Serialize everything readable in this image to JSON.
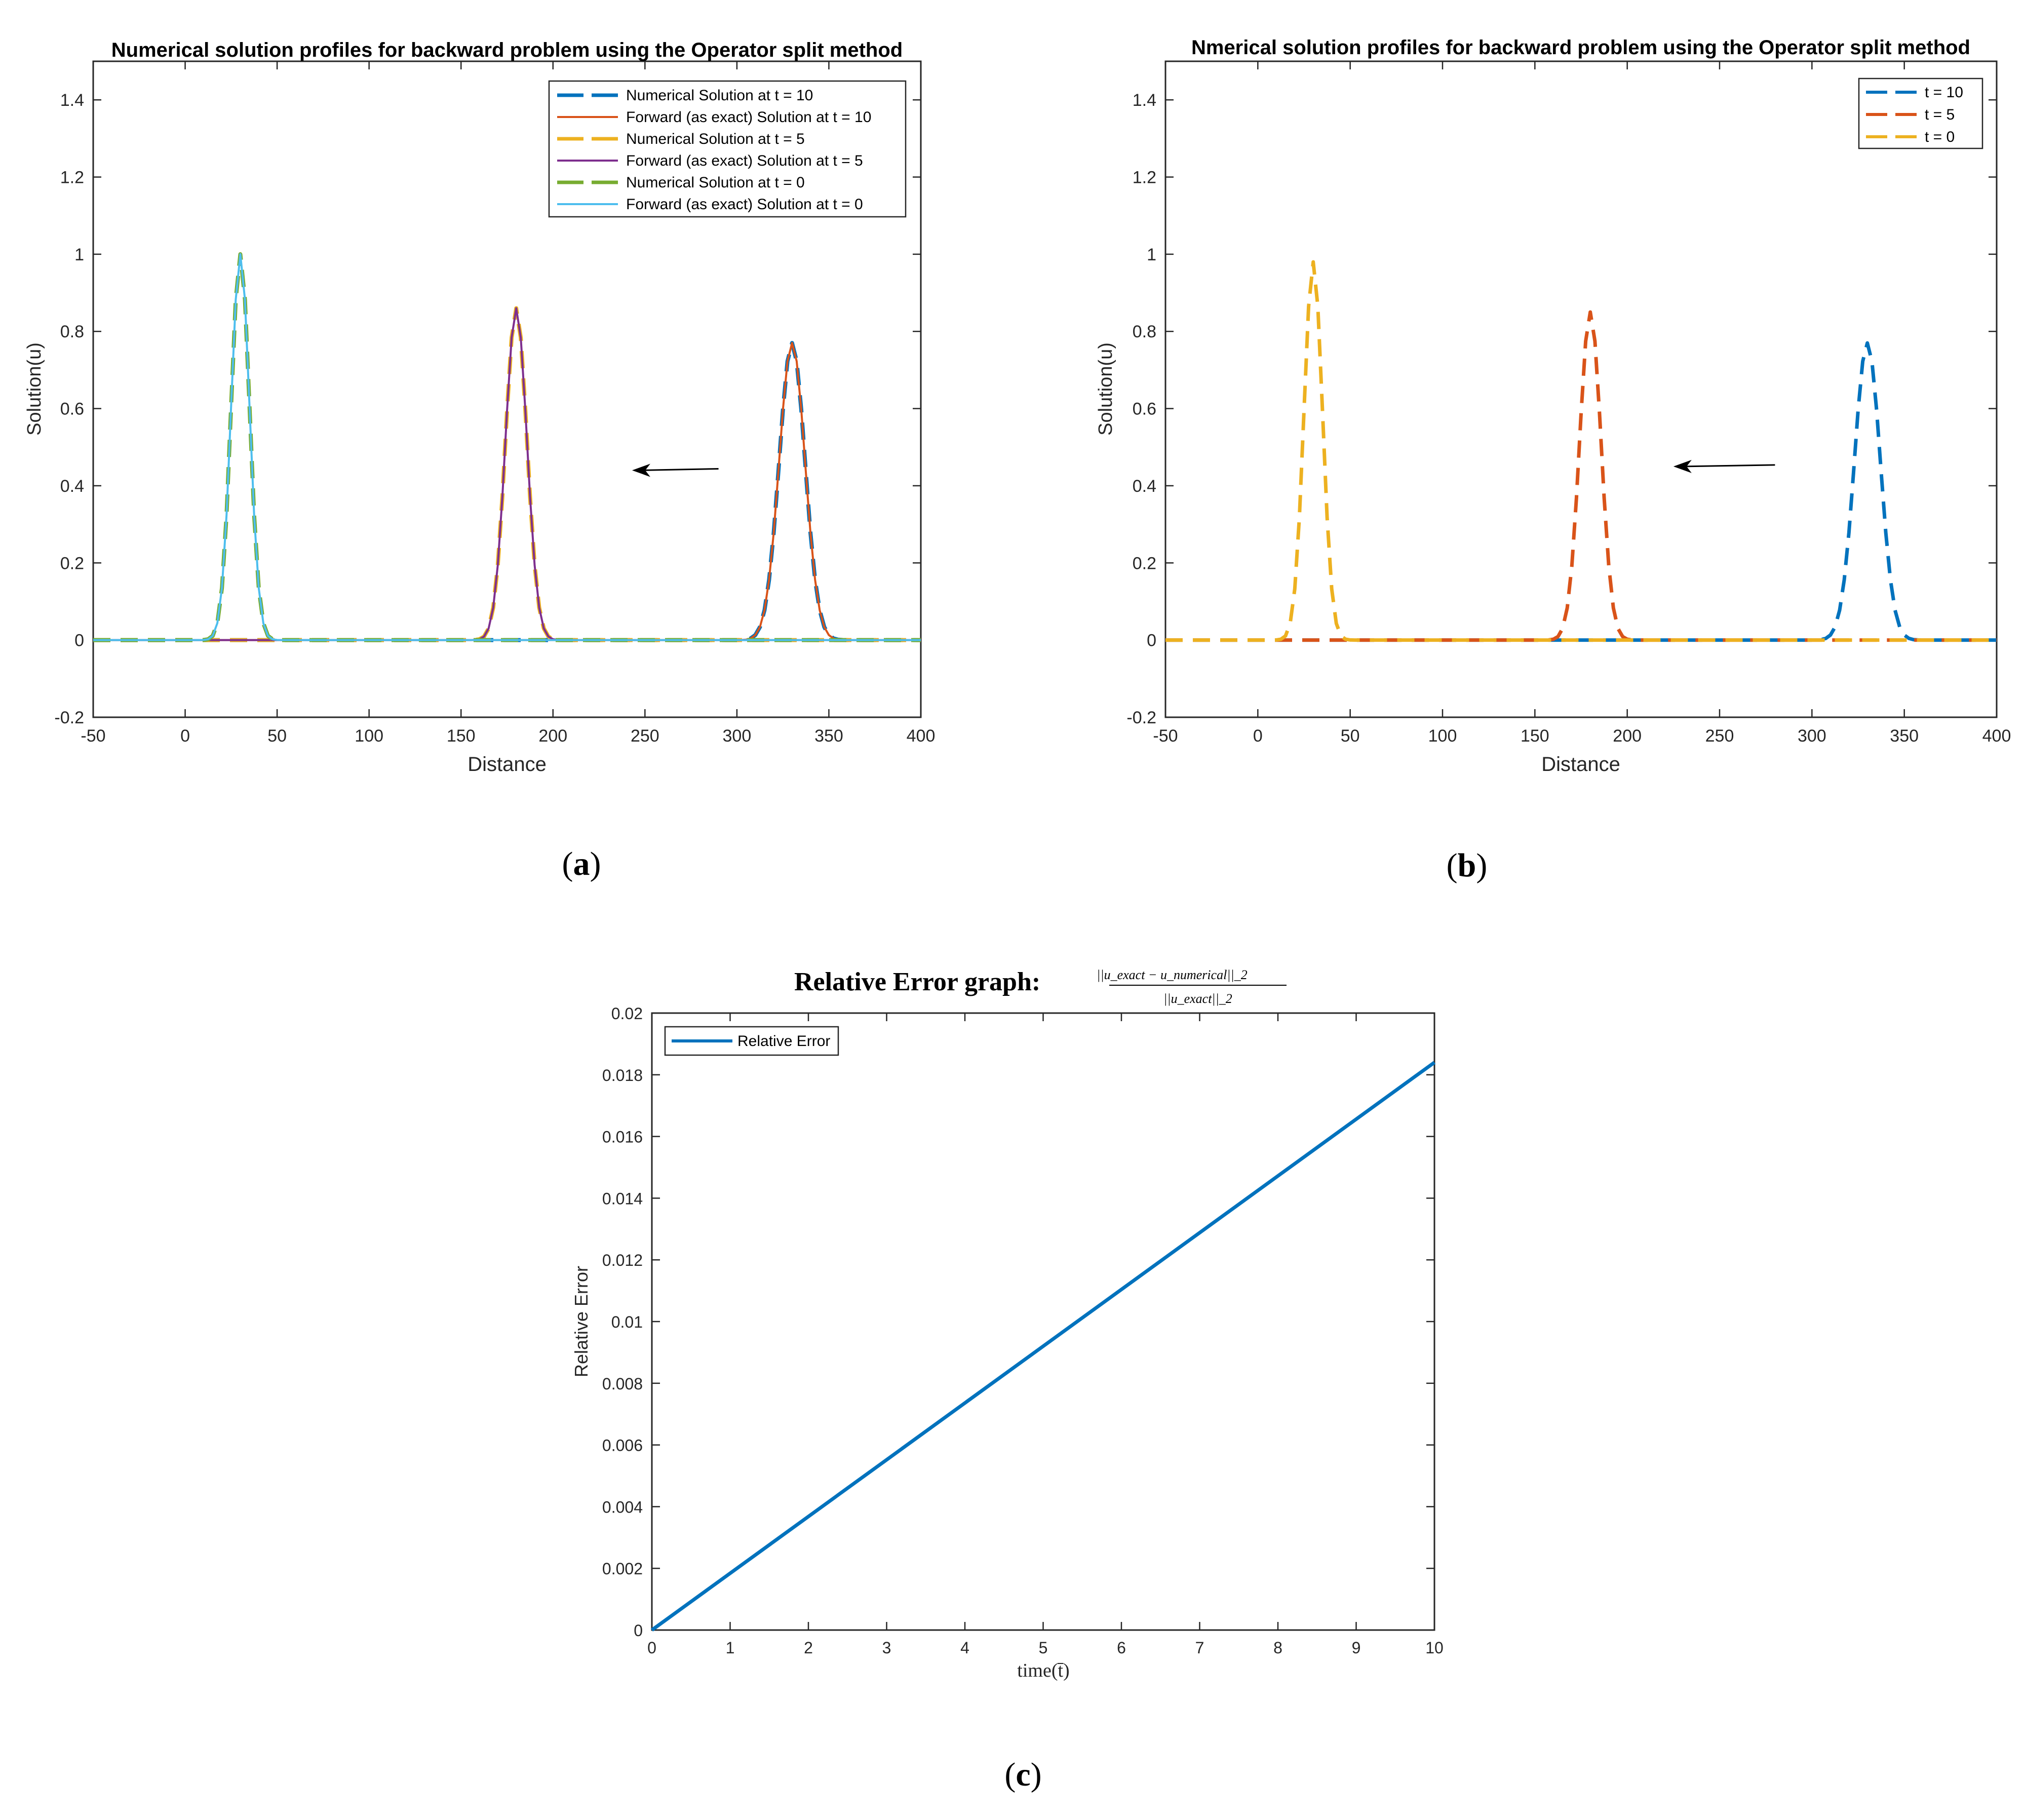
{
  "panels": {
    "a": {
      "label_open": "(",
      "label_letter": "a",
      "label_close": ")"
    },
    "b": {
      "label_open": "(",
      "label_letter": "b",
      "label_close": ")"
    },
    "c": {
      "label_open": "(",
      "label_letter": "c",
      "label_close": ")"
    }
  },
  "colors": {
    "blue": "#0072BD",
    "orange": "#D95319",
    "yellow": "#EDB120",
    "purple": "#7E2F8E",
    "green": "#77AC30",
    "cyan": "#4DBEEE"
  },
  "chart_data": [
    {
      "id": "a",
      "type": "line",
      "title": "Numerical solution profiles for backward problem using the Operator split method",
      "xlabel": "Distance",
      "ylabel": "Solution(u)",
      "xlim": [
        -50,
        400
      ],
      "ylim": [
        -0.2,
        1.5
      ],
      "xticks": [
        -50,
        0,
        50,
        100,
        150,
        200,
        250,
        300,
        350,
        400
      ],
      "yticks": [
        -0.2,
        0,
        0.2,
        0.4,
        0.6,
        0.8,
        1,
        1.2,
        1.4
      ],
      "ytick_labels": [
        "-0.2",
        "0",
        "0.2",
        "0.4",
        "0.6",
        "0.8",
        "1",
        "1.2",
        "1.4"
      ],
      "grid": false,
      "legend_position": "top-right",
      "annotation": "arrow pointing left from x=290 to x=243 at y=0.44",
      "series": [
        {
          "name": "Numerical Solution at t = 10",
          "color": "#0072BD",
          "style": "dashed",
          "width": 8,
          "center": 330,
          "peak": 0.77,
          "sigma": 7
        },
        {
          "name": "Forward (as exact) Solution at t = 10",
          "color": "#D95319",
          "style": "solid",
          "width": 4,
          "center": 330,
          "peak": 0.77,
          "sigma": 7
        },
        {
          "name": "Numerical Solution at t = 5",
          "color": "#EDB120",
          "style": "dashed",
          "width": 8,
          "center": 180,
          "peak": 0.86,
          "sigma": 5.8
        },
        {
          "name": "Forward (as exact) Solution at t = 5",
          "color": "#7E2F8E",
          "style": "solid",
          "width": 4,
          "center": 180,
          "peak": 0.86,
          "sigma": 5.8
        },
        {
          "name": "Numerical Solution at t = 0",
          "color": "#77AC30",
          "style": "dashed",
          "width": 8,
          "center": 30,
          "peak": 1.0,
          "sigma": 5
        },
        {
          "name": "Forward (as exact) Solution at t = 0",
          "color": "#4DBEEE",
          "style": "solid",
          "width": 4,
          "center": 30,
          "peak": 1.0,
          "sigma": 5
        }
      ]
    },
    {
      "id": "b",
      "type": "line",
      "title": "Nmerical solution profiles for backward problem using the Operator split method",
      "xlabel": "Distance",
      "ylabel": "Solution(u)",
      "xlim": [
        -50,
        400
      ],
      "ylim": [
        -0.2,
        1.5
      ],
      "xticks": [
        -50,
        0,
        50,
        100,
        150,
        200,
        250,
        300,
        350,
        400
      ],
      "yticks": [
        -0.2,
        0,
        0.2,
        0.4,
        0.6,
        0.8,
        1,
        1.2,
        1.4
      ],
      "ytick_labels": [
        "-0.2",
        "0",
        "0.2",
        "0.4",
        "0.6",
        "0.8",
        "1",
        "1.2",
        "1.4"
      ],
      "grid": false,
      "legend_position": "top-right",
      "annotation": "arrow pointing left from x=280 to x=225 at y=0.45",
      "series": [
        {
          "name": "t = 10",
          "color": "#0072BD",
          "style": "dashed",
          "width": 7,
          "center": 330,
          "peak": 0.77,
          "sigma": 7
        },
        {
          "name": "t = 5",
          "color": "#D95319",
          "style": "dashed",
          "width": 7,
          "center": 180,
          "peak": 0.85,
          "sigma": 5.8
        },
        {
          "name": "t = 0",
          "color": "#EDB120",
          "style": "dashed",
          "width": 7,
          "center": 30,
          "peak": 0.98,
          "sigma": 5
        }
      ]
    },
    {
      "id": "c",
      "type": "line",
      "title": "Relative Error graph:",
      "title_formula_numerator": "||u_exact − u_numerical||_2",
      "title_formula_denominator": "||u_exact||_2",
      "xlabel": "time(t̄)",
      "ylabel": "Relative Error",
      "xlim": [
        0,
        10
      ],
      "ylim": [
        0,
        0.02
      ],
      "xticks": [
        0,
        1,
        2,
        3,
        4,
        5,
        6,
        7,
        8,
        9,
        10
      ],
      "yticks": [
        0,
        0.002,
        0.004,
        0.006,
        0.008,
        0.01,
        0.012,
        0.014,
        0.016,
        0.018,
        0.02
      ],
      "ytick_labels": [
        "0",
        "0.002",
        "0.004",
        "0.006",
        "0.008",
        "0.01",
        "0.012",
        "0.014",
        "0.016",
        "0.018",
        "0.02"
      ],
      "grid": false,
      "legend_position": "top-left",
      "series": [
        {
          "name": "Relative Error",
          "color": "#0072BD",
          "style": "solid",
          "width": 7,
          "x": [
            0,
            10
          ],
          "y": [
            0,
            0.0184
          ]
        }
      ]
    }
  ]
}
